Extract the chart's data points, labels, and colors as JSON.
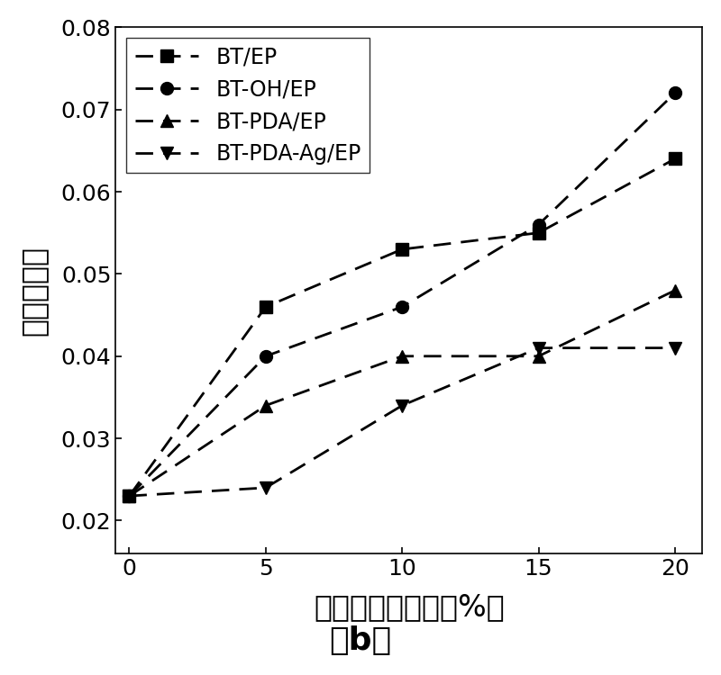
{
  "x": [
    0,
    5,
    10,
    15,
    20
  ],
  "series": [
    {
      "label": "BT/EP",
      "y": [
        0.023,
        0.046,
        0.053,
        0.055,
        0.064
      ],
      "marker": "s",
      "color": "#000000"
    },
    {
      "label": "BT-OH/EP",
      "y": [
        0.023,
        0.04,
        0.046,
        0.056,
        0.072
      ],
      "marker": "o",
      "color": "#000000"
    },
    {
      "label": "BT-PDA/EP",
      "y": [
        0.023,
        0.034,
        0.04,
        0.04,
        0.048
      ],
      "marker": "^",
      "color": "#000000"
    },
    {
      "label": "BT-PDA-Ag/EP",
      "y": [
        0.023,
        0.024,
        0.034,
        0.041,
        0.041
      ],
      "marker": "v",
      "color": "#000000"
    }
  ],
  "xlabel": "添加相体积分数（%）",
  "ylabel": "捯耗角正切",
  "subtitle": "（b）",
  "xlim": [
    -0.5,
    21
  ],
  "ylim": [
    0.016,
    0.08
  ],
  "yticks": [
    0.02,
    0.03,
    0.04,
    0.05,
    0.06,
    0.07,
    0.08
  ],
  "xticks": [
    0,
    5,
    10,
    15,
    20
  ],
  "xlabel_fontsize": 24,
  "ylabel_fontsize": 24,
  "tick_fontsize": 18,
  "legend_fontsize": 17,
  "subtitle_fontsize": 26
}
